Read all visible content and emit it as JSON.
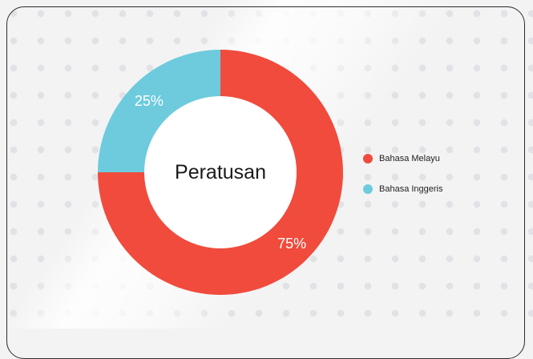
{
  "chart_data": {
    "type": "donut",
    "center_label": "Peratusan",
    "categories": [
      "Bahasa Melayu",
      "Bahasa Inggeris"
    ],
    "values": [
      75,
      25
    ],
    "value_labels": [
      "75%",
      "25%"
    ],
    "colors": [
      "#f04b3c",
      "#6dcbdd"
    ],
    "legend": "right"
  }
}
